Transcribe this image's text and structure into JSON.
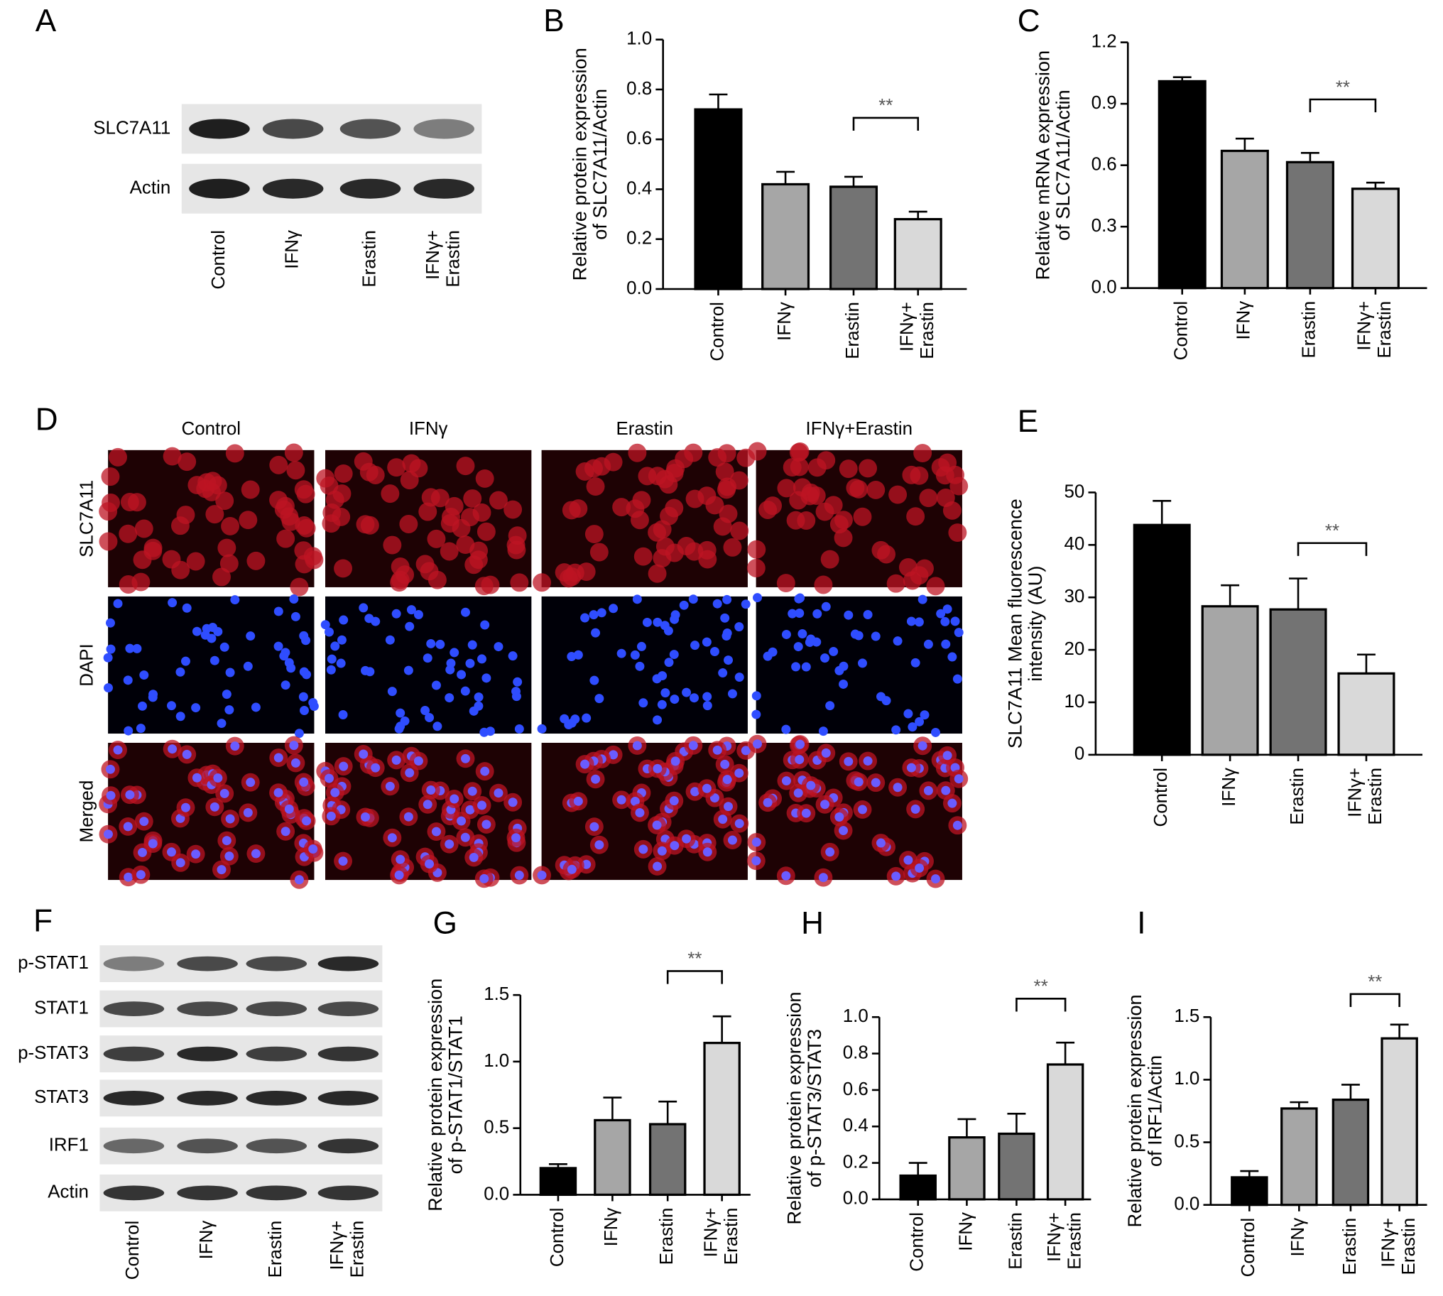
{
  "blot_a": {
    "label": "A",
    "rows": [
      "SLC7A11",
      "Actin"
    ],
    "lanes": [
      "Control",
      "IFNγ",
      "Erastin",
      "IFNγ+\nErastin"
    ]
  },
  "images_d": {
    "label": "D",
    "columns": [
      "Control",
      "IFNγ",
      "Erastin",
      "IFNγ+Erastin"
    ],
    "rows": [
      "SLC7A11",
      "DAPI",
      "Merged"
    ]
  },
  "blot_f": {
    "label": "F",
    "rows": [
      "p-STAT1",
      "STAT1",
      "p-STAT3",
      "STAT3",
      "IRF1",
      "Actin"
    ],
    "lanes": [
      "Control",
      "IFNγ",
      "Erastin",
      "IFNγ+\nErastin"
    ]
  },
  "chart_data": [
    {
      "type": "bar",
      "label": "B",
      "ylabel": "Relative protein expression\nof SLC7A11/Actin",
      "categories": [
        "Control",
        "IFNγ",
        "Erastin",
        "IFNγ+\nErastin"
      ],
      "values": [
        0.72,
        0.42,
        0.41,
        0.28
      ],
      "errors": [
        0.06,
        0.05,
        0.04,
        0.03
      ],
      "colors": [
        "#000000",
        "#a6a6a6",
        "#737373",
        "#d9d9d9"
      ],
      "ylim": [
        0,
        1.0
      ],
      "yticks": [
        {
          "value": 0,
          "label": "0.0"
        },
        {
          "value": 0.2,
          "label": "0.2"
        },
        {
          "value": 0.4,
          "label": "0.4"
        },
        {
          "value": 0.6,
          "label": "0.6"
        },
        {
          "value": 0.8,
          "label": "0.8"
        },
        {
          "value": 1.0,
          "label": "1.0"
        }
      ],
      "significance": "**"
    },
    {
      "type": "bar",
      "label": "C",
      "ylabel": "Relative mRNA expression\nof SLC7A11/Actin",
      "categories": [
        "Control",
        "IFNγ",
        "Erastin",
        "IFNγ+\nErastin"
      ],
      "values": [
        1.01,
        0.67,
        0.615,
        0.485
      ],
      "errors": [
        0.02,
        0.06,
        0.045,
        0.03
      ],
      "colors": [
        "#000000",
        "#a6a6a6",
        "#737373",
        "#d9d9d9"
      ],
      "ylim": [
        0,
        1.2
      ],
      "yticks": [
        {
          "value": 0,
          "label": "0.0"
        },
        {
          "value": 0.3,
          "label": "0.3"
        },
        {
          "value": 0.6,
          "label": "0.6"
        },
        {
          "value": 0.9,
          "label": "0.9"
        },
        {
          "value": 1.2,
          "label": "1.2"
        }
      ],
      "significance": "**"
    },
    {
      "type": "bar",
      "label": "E",
      "ylabel": "SLC7A11 Mean fluorescence\nintensity (AU)",
      "categories": [
        "Control",
        "IFNγ",
        "Erastin",
        "IFNγ+\nErastin"
      ],
      "values": [
        43.8,
        28.3,
        27.7,
        15.5
      ],
      "errors": [
        4.6,
        4.0,
        5.9,
        3.6
      ],
      "colors": [
        "#000000",
        "#a6a6a6",
        "#737373",
        "#d9d9d9"
      ],
      "ylim": [
        0,
        50
      ],
      "yticks": [
        0,
        10,
        20,
        30,
        40,
        50
      ],
      "significance": "**"
    },
    {
      "type": "bar",
      "label": "G",
      "ylabel": "Relative protein expression\nof p-STAT1/STAT1",
      "categories": [
        "Control",
        "IFNγ",
        "Erastin",
        "IFNγ+\nErastin"
      ],
      "values": [
        0.2,
        0.56,
        0.53,
        1.14
      ],
      "errors": [
        0.03,
        0.17,
        0.17,
        0.2
      ],
      "colors": [
        "#000000",
        "#a6a6a6",
        "#737373",
        "#d9d9d9"
      ],
      "ylim": [
        0,
        1.5
      ],
      "yticks": [
        {
          "value": 0,
          "label": "0.0"
        },
        {
          "value": 0.5,
          "label": "0.5"
        },
        {
          "value": 1.0,
          "label": "1.0"
        },
        {
          "value": 1.5,
          "label": "1.5"
        }
      ],
      "significance": "**"
    },
    {
      "type": "bar",
      "label": "H",
      "ylabel": "Relative protein expression\nof p-STAT3/STAT3",
      "categories": [
        "Control",
        "IFNγ",
        "Erastin",
        "IFNγ+\nErastin"
      ],
      "values": [
        0.13,
        0.34,
        0.36,
        0.74
      ],
      "errors": [
        0.07,
        0.1,
        0.11,
        0.12
      ],
      "colors": [
        "#000000",
        "#a6a6a6",
        "#737373",
        "#d9d9d9"
      ],
      "ylim": [
        0,
        1.0
      ],
      "yticks": [
        {
          "value": 0,
          "label": "0.0"
        },
        {
          "value": 0.2,
          "label": "0.2"
        },
        {
          "value": 0.4,
          "label": "0.4"
        },
        {
          "value": 0.6,
          "label": "0.6"
        },
        {
          "value": 0.8,
          "label": "0.8"
        },
        {
          "value": 1.0,
          "label": "1.0"
        }
      ],
      "significance": "**"
    },
    {
      "type": "bar",
      "label": "I",
      "ylabel": "Relative protein expression\nof IRF1/Actin",
      "categories": [
        "Control",
        "IFNγ",
        "Erastin",
        "IFNγ+\nErastin"
      ],
      "values": [
        0.22,
        0.77,
        0.84,
        1.33
      ],
      "errors": [
        0.05,
        0.05,
        0.12,
        0.11
      ],
      "colors": [
        "#000000",
        "#a6a6a6",
        "#737373",
        "#d9d9d9"
      ],
      "ylim": [
        0,
        1.5
      ],
      "yticks": [
        {
          "value": 0,
          "label": "0.0"
        },
        {
          "value": 0.5,
          "label": "0.5"
        },
        {
          "value": 1.0,
          "label": "1.0"
        },
        {
          "value": 1.5,
          "label": "1.5"
        }
      ],
      "significance": "**"
    }
  ]
}
